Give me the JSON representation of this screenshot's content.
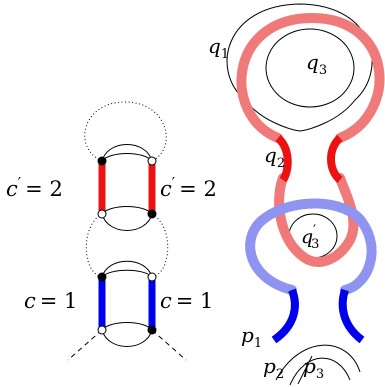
{
  "left_diagram": {
    "top_pair": {
      "color": "#ee1111",
      "label_left": {
        "var": "c",
        "prime": "′",
        "rhs": "= 2"
      },
      "label_right": {
        "var": "c",
        "prime": "′",
        "rhs": "= 2"
      }
    },
    "bottom_pair": {
      "color": "#0000ee",
      "label_left": {
        "var": "c",
        "rhs": "= 1"
      },
      "label_right": {
        "var": "c",
        "rhs": "= 1"
      }
    }
  },
  "right_diagram": {
    "colors": {
      "light_red": "#f07a7a",
      "red": "#ee1111",
      "light_blue": "#8f94f0",
      "blue": "#0000ee"
    },
    "labels": {
      "q1": {
        "base": "q",
        "sub": "1"
      },
      "q3": {
        "base": "q",
        "sub": "3"
      },
      "q2": {
        "base": "q",
        "sub": "2"
      },
      "q3_prime": {
        "base": "q",
        "sup": "′",
        "sub": "3"
      },
      "p1": {
        "base": "p",
        "sub": "1"
      },
      "p2": {
        "base": "p",
        "sub": "2"
      },
      "p3": {
        "base": "p",
        "sub": "3"
      }
    }
  }
}
